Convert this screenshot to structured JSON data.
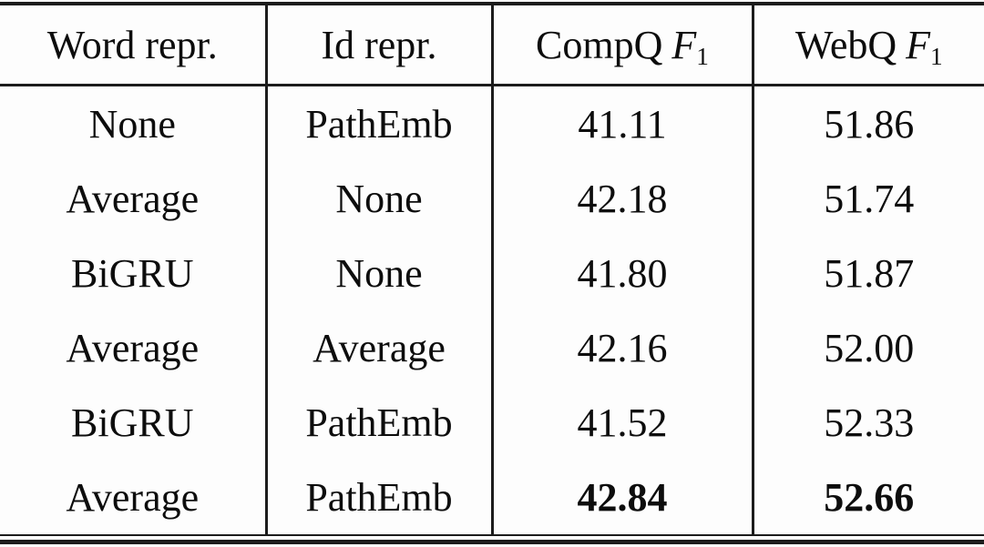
{
  "colors": {
    "text": "#0d0d0d",
    "rule": "#1c1c1c",
    "background": "#fdfdfd"
  },
  "table": {
    "headers": {
      "word_repr": "Word repr.",
      "id_repr": "Id repr.",
      "compq": {
        "name": "CompQ",
        "metric": "F",
        "subscript": "1"
      },
      "webq": {
        "name": "WebQ",
        "metric": "F",
        "subscript": "1"
      }
    },
    "rows": [
      {
        "word_repr": "None",
        "id_repr": "PathEmb",
        "compq_f1": "41.11",
        "webq_f1": "51.86",
        "bold": false
      },
      {
        "word_repr": "Average",
        "id_repr": "None",
        "compq_f1": "42.18",
        "webq_f1": "51.74",
        "bold": false
      },
      {
        "word_repr": "BiGRU",
        "id_repr": "None",
        "compq_f1": "41.80",
        "webq_f1": "51.87",
        "bold": false
      },
      {
        "word_repr": "Average",
        "id_repr": "Average",
        "compq_f1": "42.16",
        "webq_f1": "52.00",
        "bold": false
      },
      {
        "word_repr": "BiGRU",
        "id_repr": "PathEmb",
        "compq_f1": "41.52",
        "webq_f1": "52.33",
        "bold": false
      },
      {
        "word_repr": "Average",
        "id_repr": "PathEmb",
        "compq_f1": "42.84",
        "webq_f1": "52.66",
        "bold": true
      }
    ]
  },
  "chart_data": {
    "type": "table",
    "columns": [
      "Word repr.",
      "Id repr.",
      "CompQ F1",
      "WebQ F1"
    ],
    "rows": [
      [
        "None",
        "PathEmb",
        41.11,
        51.86
      ],
      [
        "Average",
        "None",
        42.18,
        51.74
      ],
      [
        "BiGRU",
        "None",
        41.8,
        51.87
      ],
      [
        "Average",
        "Average",
        42.16,
        52.0
      ],
      [
        "BiGRU",
        "PathEmb",
        41.52,
        52.33
      ],
      [
        "Average",
        "PathEmb",
        42.84,
        52.66
      ]
    ],
    "notes_bold_best": [
      "42.84",
      "52.66"
    ]
  }
}
